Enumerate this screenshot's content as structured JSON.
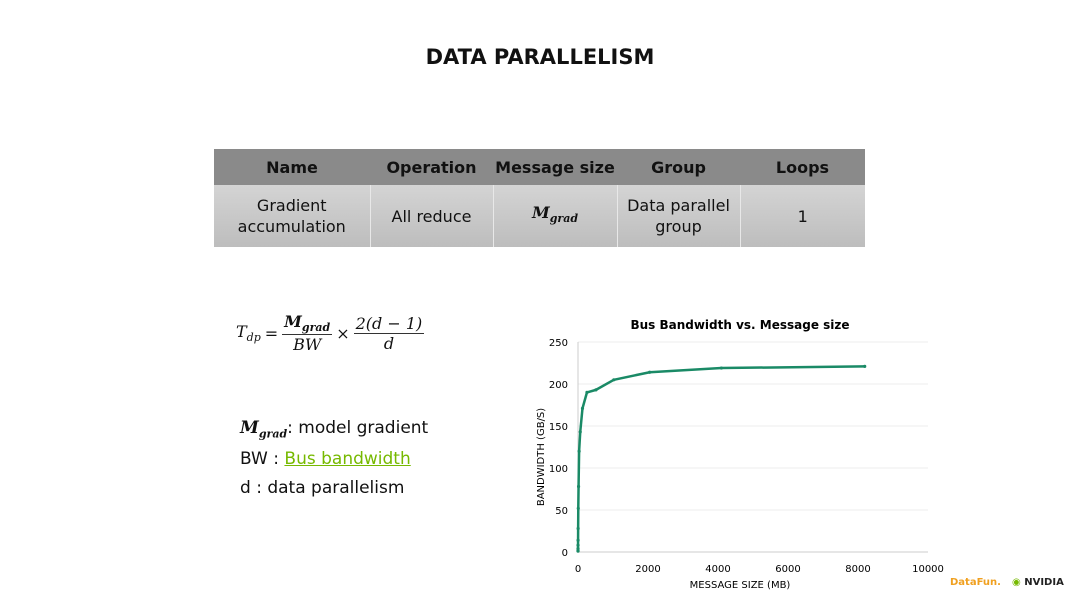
{
  "title": "DATA PARALLELISM",
  "table": {
    "headers": [
      "Name",
      "Operation",
      "Message size",
      "Group",
      "Loops"
    ],
    "row": {
      "name_line1": "Gradient",
      "name_line2": "accumulation",
      "operation": "All reduce",
      "message_size_base": "M",
      "message_size_sub": "grad",
      "group_line1": "Data parallel",
      "group_line2": "group",
      "loops": "1"
    }
  },
  "formula": {
    "lhs": "T",
    "lhs_sub": "dp",
    "eq": "=",
    "num1": "M",
    "num1_sub": "grad",
    "den1": "BW",
    "times": "×",
    "num2": "2(d − 1)",
    "den2": "d"
  },
  "definitions": [
    {
      "symbol": "M",
      "symbol_sub": "grad",
      "text": ": model gradient"
    },
    {
      "symbol": "BW :",
      "link": "Bus bandwidth"
    },
    {
      "symbol": "d :",
      "text": "data parallelism"
    }
  ],
  "colors": {
    "line": "#1a8a66",
    "link": "#76b900",
    "header": "#8a8a8a"
  },
  "logos": {
    "datafun": "DataFun.",
    "nvidia": "NVIDIA"
  },
  "chart_data": {
    "type": "line",
    "title": "Bus Bandwidth vs. Message size",
    "xlabel": "MESSAGE SIZE (MB)",
    "ylabel": "BANDWIDTH (GB/S)",
    "xlim": [
      0,
      10000
    ],
    "ylim": [
      0,
      250
    ],
    "xticks": [
      0,
      2000,
      4000,
      6000,
      8000,
      10000
    ],
    "yticks": [
      0,
      50,
      100,
      150,
      200,
      250
    ],
    "grid": true,
    "x": [
      0.125,
      0.25,
      0.5,
      1,
      2,
      4,
      8,
      16,
      32,
      64,
      128,
      256,
      512,
      1024,
      2048,
      4096,
      8192
    ],
    "y": [
      1,
      2,
      4,
      8,
      14,
      28,
      52,
      78,
      120,
      143,
      171,
      190,
      193,
      205,
      214,
      219,
      221
    ]
  }
}
